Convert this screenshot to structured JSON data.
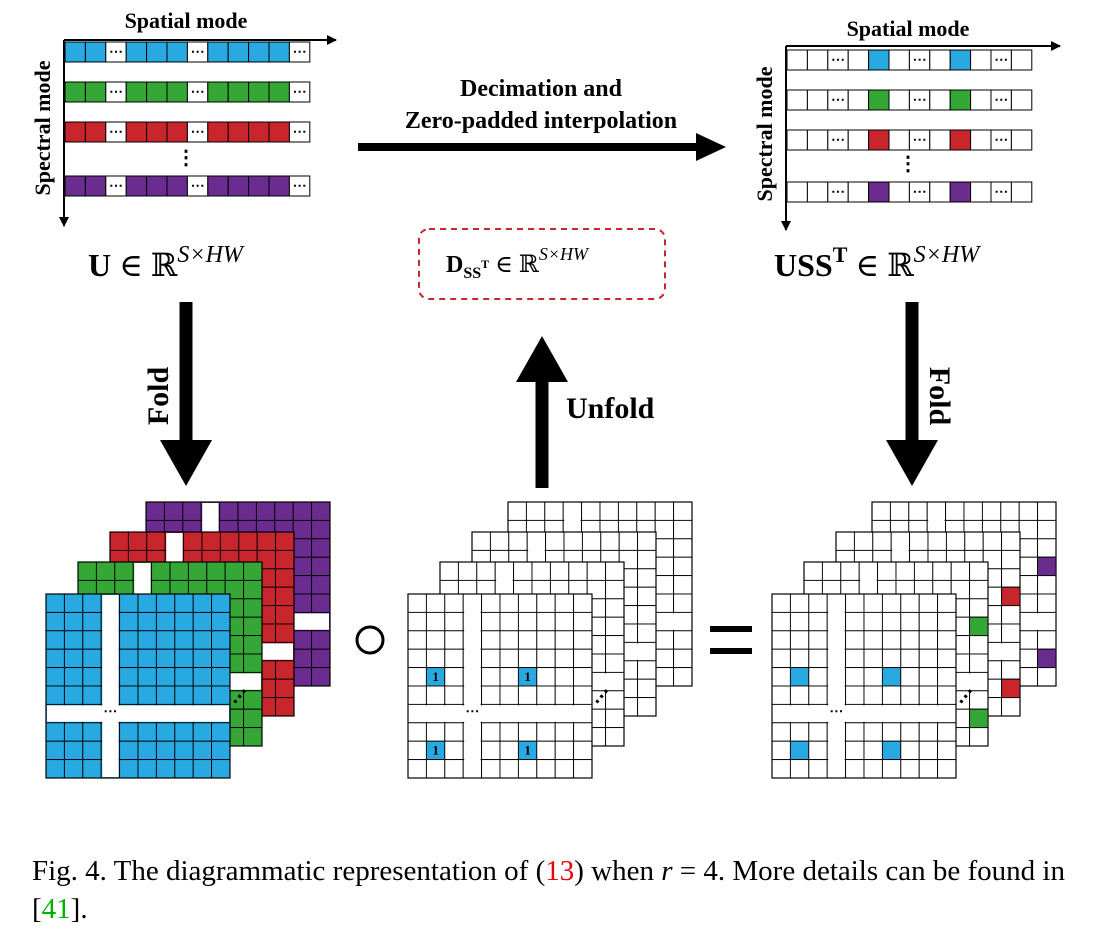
{
  "colors": {
    "blue": "#29a9e1",
    "green": "#35a737",
    "red": "#c9252c",
    "purple": "#6a2c8f",
    "dash_box": "#c8262f",
    "caption_ref_red": "#e8000b",
    "caption_ref_green": "#00b000"
  },
  "left_matrix": {
    "axis_x_label": "Spatial mode",
    "axis_y_label": "Spectral mode",
    "row_ellipsis": "⋯",
    "vertical_ellipsis": "⋮",
    "label_bold": "U",
    "label_rest": " ∈ ℝ",
    "label_sup": "S×HW"
  },
  "center": {
    "arrow_label_line1": "Decimation and",
    "arrow_label_line2": "Zero-padded interpolation",
    "dash_box_main": "D",
    "dash_box_sub": "SS",
    "dash_box_subsup": "T",
    "dash_box_rest": " ∈ ℝ",
    "dash_box_sup": "S×HW",
    "unfold_label": "Unfold",
    "one_mark": "1",
    "hadamard_symbol": "○",
    "equals_symbol": "="
  },
  "right_matrix": {
    "axis_x_label": "Spatial mode",
    "axis_y_label": "Spectral mode",
    "label_bold": "USS",
    "label_sup_bold": "T",
    "label_rest": " ∈ ℝ",
    "label_sup": "S×HW"
  },
  "fold_label_left": "Fold",
  "fold_label_right": "Fold",
  "stack_ellipsis": "⋯",
  "grid_ellipsis": "⋯",
  "caption": {
    "prefix": "Fig. 4.   The diagrammatic representation of (",
    "eq_ref": "13",
    "mid1": ") when ",
    "var": "r",
    "mid2": " = 4. More details can be found in [",
    "cite": "41",
    "suffix": "]."
  }
}
